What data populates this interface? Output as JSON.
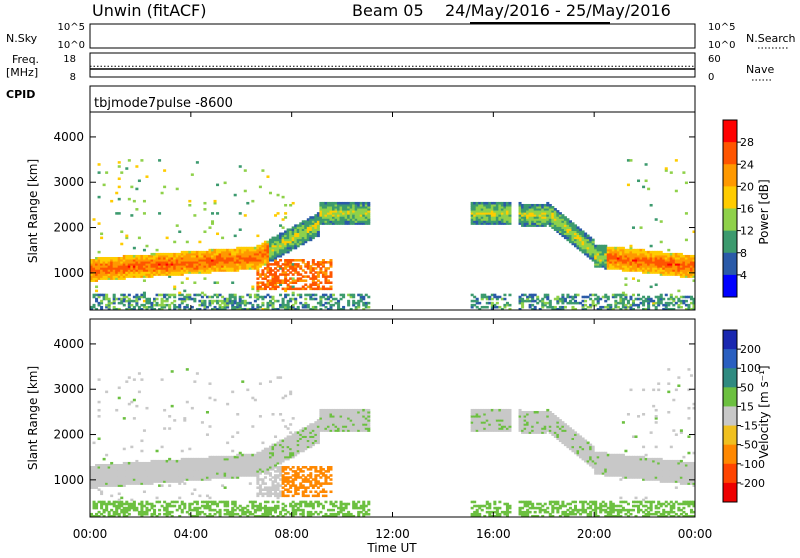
{
  "header": {
    "title": "Unwin (fitACF)",
    "beam": "Beam 05",
    "date_range": "24/May/2016 - 25/May/2016"
  },
  "labels": {
    "nsky": "N.Sky",
    "nsearch": "N.Search",
    "freq": "Freq.",
    "freq_unit": "[MHz]",
    "nave": "Nave",
    "cpid": "CPID",
    "cpid_value": "tbjmode7pulse -8600",
    "xlabel": "Time UT"
  },
  "colors": {
    "frame": "#000000",
    "ground_scatter": "#a8a8a8"
  },
  "chart_data": [
    {
      "type": "line",
      "name": "noise",
      "left_ticks": [
        "10^5",
        "10^0"
      ],
      "right_ticks": [
        "10^5",
        "10^0"
      ]
    },
    {
      "type": "line",
      "name": "frequency_nave",
      "left_ticks": [
        "18",
        "8"
      ],
      "right_ticks": [
        "60",
        "0"
      ],
      "freq_mhz": 12.5,
      "nave": 20
    },
    {
      "type": "heatmap",
      "name": "power",
      "ylabel": "Slant Range [km]",
      "ylim": [
        180,
        4550
      ],
      "yticks": [
        1000,
        2000,
        3000,
        4000
      ],
      "xlim": [
        0,
        24
      ],
      "xticks": [
        "00:00",
        "04:00",
        "08:00",
        "12:00",
        "16:00",
        "20:00",
        "00:00"
      ],
      "colorbar": {
        "label": "Power [dB]",
        "ticks": [
          "28",
          "24",
          "20",
          "16",
          "12",
          "8",
          "4"
        ],
        "colors": [
          "#ff0000",
          "#ff5500",
          "#ff9900",
          "#ffcc00",
          "#8fd14a",
          "#3c9a6e",
          "#2a5aa8",
          "#0000ff"
        ]
      }
    },
    {
      "type": "heatmap",
      "name": "velocity",
      "ylabel": "Slant Range [km]",
      "ylim": [
        180,
        4550
      ],
      "yticks": [
        1000,
        2000,
        3000,
        4000
      ],
      "xlim": [
        0,
        24
      ],
      "xticks": [
        "00:00",
        "04:00",
        "08:00",
        "12:00",
        "16:00",
        "20:00",
        "00:00"
      ],
      "colorbar": {
        "label": "Velocity [m s⁻¹]",
        "ticks": [
          "200",
          "100",
          "50",
          "15",
          "-15",
          "-50",
          "-100",
          "-200"
        ],
        "colors": [
          "#1a28b0",
          "#2a5fc0",
          "#2f8a80",
          "#6cc040",
          "#c8c8c8",
          "#f0c020",
          "#ff8800",
          "#ff4400",
          "#ee0000"
        ]
      }
    }
  ]
}
